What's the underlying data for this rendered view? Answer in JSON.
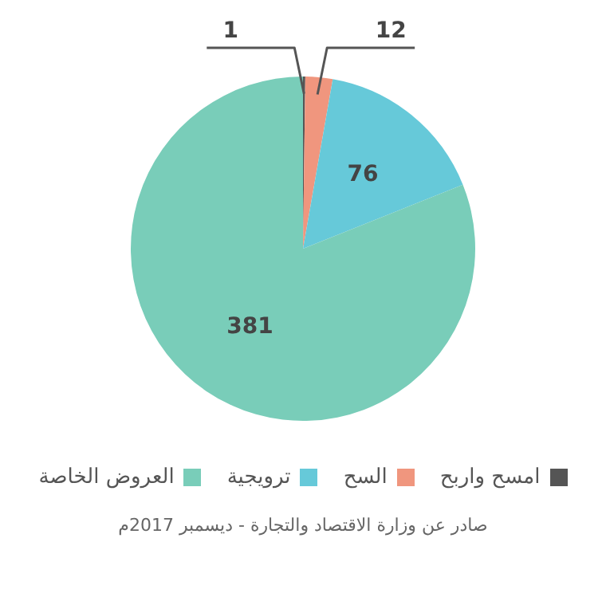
{
  "chart_data": {
    "type": "pie",
    "categories": [
      "امسح واربح",
      "السح",
      "ترويجية",
      "العروض الخاصة"
    ],
    "values": [
      1,
      12,
      76,
      381
    ],
    "colors": [
      "#555555",
      "#f0967e",
      "#66c9d9",
      "#79cdb9"
    ],
    "data_labels": true,
    "legend": "bottom",
    "annotations": [
      "صادر عن وزارة الاقتصاد والتجارة - ديسمبر 2017م"
    ]
  }
}
